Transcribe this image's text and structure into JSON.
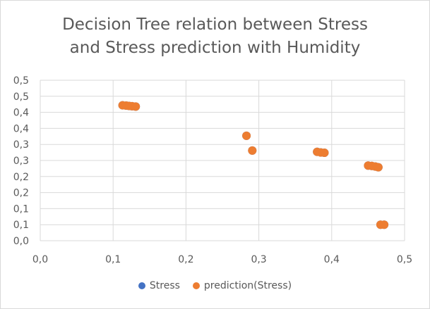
{
  "chart_data": {
    "type": "scatter",
    "title_lines": [
      "Decision Tree relation between Stress",
      "and Stress prediction with Humidity"
    ],
    "xlabel": "",
    "ylabel": "",
    "xlim": [
      0,
      0.5
    ],
    "ylim": [
      0,
      0.5
    ],
    "x_tick_values": [
      0,
      0.1,
      0.2,
      0.3,
      0.4,
      0.5
    ],
    "x_tick_labels": [
      "0,0",
      "0,1",
      "0,2",
      "0,3",
      "0,4",
      "0,5"
    ],
    "y_tick_values": [
      0,
      0.05,
      0.1,
      0.15,
      0.2,
      0.25,
      0.3,
      0.35,
      0.4,
      0.45,
      0.5
    ],
    "y_tick_labels": [
      "0,0",
      "0,1",
      "0,1",
      "0,2",
      "0,2",
      "0,3",
      "0,3",
      "0,4",
      "0,4",
      "0,5",
      "0,5"
    ],
    "grid": true,
    "legend_position": "bottom",
    "series": [
      {
        "name": "Stress",
        "color": "#4472c4",
        "points": [
          {
            "x": 0.113,
            "y": 0.422
          },
          {
            "x": 0.118,
            "y": 0.421
          },
          {
            "x": 0.122,
            "y": 0.42
          },
          {
            "x": 0.126,
            "y": 0.419
          },
          {
            "x": 0.131,
            "y": 0.418
          },
          {
            "x": 0.283,
            "y": 0.327
          },
          {
            "x": 0.291,
            "y": 0.281
          },
          {
            "x": 0.38,
            "y": 0.277
          },
          {
            "x": 0.385,
            "y": 0.275
          },
          {
            "x": 0.39,
            "y": 0.274
          },
          {
            "x": 0.45,
            "y": 0.234
          },
          {
            "x": 0.455,
            "y": 0.233
          },
          {
            "x": 0.46,
            "y": 0.231
          },
          {
            "x": 0.464,
            "y": 0.229
          },
          {
            "x": 0.467,
            "y": 0.05
          },
          {
            "x": 0.472,
            "y": 0.05
          }
        ]
      },
      {
        "name": "prediction(Stress)",
        "color": "#ed7d31",
        "points": [
          {
            "x": 0.113,
            "y": 0.422
          },
          {
            "x": 0.118,
            "y": 0.421
          },
          {
            "x": 0.122,
            "y": 0.42
          },
          {
            "x": 0.126,
            "y": 0.419
          },
          {
            "x": 0.131,
            "y": 0.418
          },
          {
            "x": 0.283,
            "y": 0.327
          },
          {
            "x": 0.291,
            "y": 0.281
          },
          {
            "x": 0.38,
            "y": 0.277
          },
          {
            "x": 0.385,
            "y": 0.275
          },
          {
            "x": 0.39,
            "y": 0.274
          },
          {
            "x": 0.45,
            "y": 0.234
          },
          {
            "x": 0.455,
            "y": 0.233
          },
          {
            "x": 0.46,
            "y": 0.231
          },
          {
            "x": 0.464,
            "y": 0.229
          },
          {
            "x": 0.467,
            "y": 0.05
          },
          {
            "x": 0.472,
            "y": 0.05
          }
        ]
      }
    ]
  }
}
